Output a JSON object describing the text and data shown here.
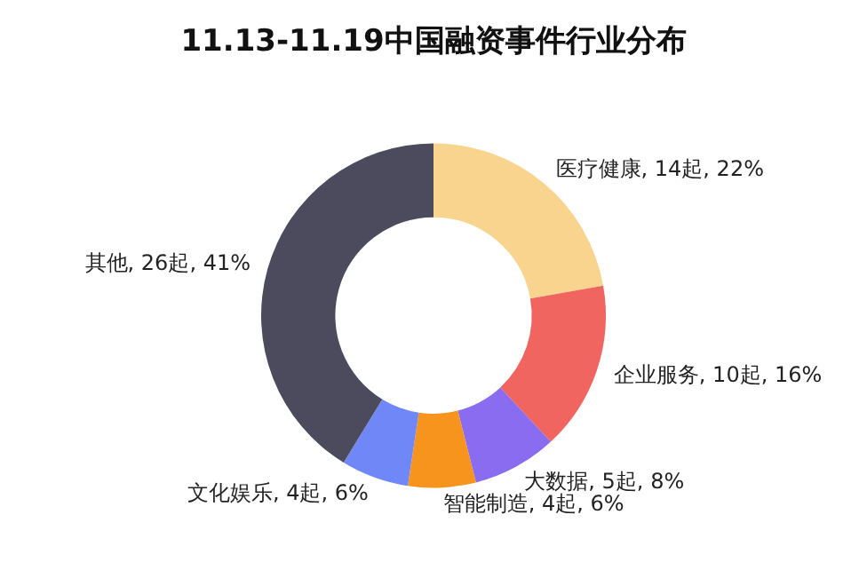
{
  "chart_data": {
    "type": "donut",
    "title": "11.13-11.19中国融资事件行业分布",
    "categories": [
      "医疗健康",
      "企业服务",
      "大数据",
      "智能制造",
      "文化娱乐",
      "其他"
    ],
    "values": [
      14,
      10,
      5,
      4,
      4,
      26
    ],
    "value_labels": [
      "14起, 22%",
      "10起, 16%",
      "5起, 8%",
      "4起, 6%",
      "4起, 6%",
      "26起, 41%"
    ],
    "colors": [
      "#f9d48f",
      "#f0655f",
      "#8a6cf0",
      "#f7941d",
      "#7088f7",
      "#4c4b5e"
    ],
    "legend": false
  }
}
